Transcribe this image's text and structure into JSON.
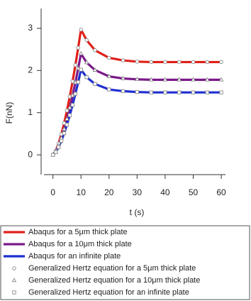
{
  "chart_data": {
    "type": "line",
    "xlabel": "t (s)",
    "ylabel": "F(nN)",
    "x": [
      0,
      1,
      2,
      3,
      4,
      5,
      6,
      7,
      8,
      9,
      10,
      12,
      15,
      20,
      25,
      30,
      35,
      40,
      45,
      50,
      55,
      60
    ],
    "xlim": [
      -3.2,
      61.5
    ],
    "xticks": [
      0,
      10,
      20,
      30,
      40,
      50,
      60
    ],
    "ylim": [
      -0.47,
      3.47
    ],
    "yticks": [
      0,
      1,
      2,
      3
    ],
    "grid": false,
    "series": [
      {
        "name": "Abaqus for a 5μm thick plate",
        "color": "#e0201a",
        "marker": "none",
        "values": [
          0,
          0.094,
          0.266,
          0.488,
          0.751,
          1.05,
          1.38,
          1.74,
          2.13,
          2.54,
          2.97,
          2.72,
          2.48,
          2.3,
          2.24,
          2.21,
          2.2,
          2.2,
          2.2,
          2.2,
          2.2,
          2.2
        ]
      },
      {
        "name": "Abaqus for a 10μm thick plate",
        "color": "#7b1a8a",
        "marker": "none",
        "values": [
          0,
          0.076,
          0.215,
          0.394,
          0.607,
          0.849,
          1.115,
          1.406,
          1.717,
          2.049,
          2.4,
          2.19,
          2.01,
          1.86,
          1.81,
          1.79,
          1.78,
          1.78,
          1.78,
          1.78,
          1.78,
          1.78
        ]
      },
      {
        "name": "Abaqus for an infinite plate",
        "color": "#1f2fd0",
        "marker": "none",
        "values": [
          0,
          0.064,
          0.181,
          0.332,
          0.511,
          0.714,
          0.939,
          1.183,
          1.446,
          1.725,
          2.02,
          1.84,
          1.68,
          1.55,
          1.51,
          1.49,
          1.48,
          1.48,
          1.48,
          1.48,
          1.48,
          1.48
        ]
      },
      {
        "name": "Generalized Hertz equation for a 5μm thick plate",
        "color": "#8a8a8a",
        "marker": "circle",
        "values": [
          0,
          0.094,
          0.266,
          0.488,
          0.751,
          1.05,
          1.38,
          1.74,
          2.13,
          2.54,
          2.97,
          2.72,
          2.48,
          2.3,
          2.24,
          2.21,
          2.2,
          2.2,
          2.2,
          2.2,
          2.2,
          2.2
        ]
      },
      {
        "name": "Generalized Hertz equation for a 10μm thick plate",
        "color": "#8a8a8a",
        "marker": "triangle",
        "values": [
          0,
          0.076,
          0.215,
          0.394,
          0.607,
          0.849,
          1.115,
          1.406,
          1.717,
          2.049,
          2.4,
          2.19,
          2.01,
          1.86,
          1.81,
          1.79,
          1.78,
          1.78,
          1.78,
          1.78,
          1.78,
          1.78
        ]
      },
      {
        "name": "Generalized Hertz equation for an infinite plate",
        "color": "#8a8a8a",
        "marker": "square",
        "values": [
          0,
          0.064,
          0.181,
          0.332,
          0.511,
          0.714,
          0.939,
          1.183,
          1.446,
          1.725,
          2.02,
          1.84,
          1.68,
          1.55,
          1.51,
          1.49,
          1.48,
          1.48,
          1.48,
          1.48,
          1.48,
          1.48
        ]
      }
    ]
  }
}
